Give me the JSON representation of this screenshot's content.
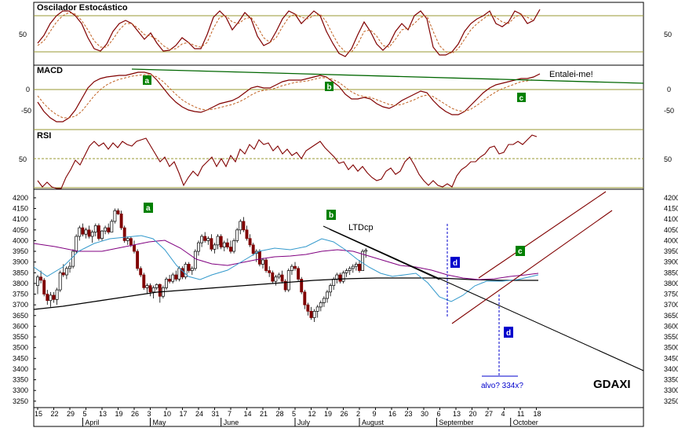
{
  "chart_data": [
    {
      "type": "line",
      "title": "Oscilador Estocástico",
      "y_ticks": [
        50
      ],
      "guide_lines": [
        80,
        20
      ],
      "ylim": [
        0,
        100
      ],
      "series": []
    },
    {
      "type": "line",
      "title": "MACD",
      "y_ticks": [
        0,
        -50
      ],
      "ylim": [
        -85,
        45
      ],
      "annotations": [
        {
          "label": "a",
          "series": "MACD"
        },
        {
          "label": "b",
          "series": "MACD"
        },
        {
          "label": "c",
          "series": "MACD"
        },
        {
          "text": "Entalei-me!"
        }
      ],
      "series": []
    },
    {
      "type": "line",
      "title": "RSI",
      "y_ticks": [
        50
      ],
      "guide_lines": [
        70,
        30
      ],
      "ylim": [
        25,
        75
      ],
      "series": []
    },
    {
      "type": "candlestick",
      "symbol": "GDAXI",
      "ylim": [
        3220,
        4240
      ],
      "y_ticks": [
        4200,
        4150,
        4100,
        4050,
        4000,
        3950,
        3900,
        3850,
        3800,
        3750,
        3700,
        3650,
        3600,
        3550,
        3500,
        3450,
        3400,
        3350,
        3300,
        3250
      ],
      "annotations": [
        {
          "label": "a",
          "color": "#008000"
        },
        {
          "label": "b",
          "color": "#008000"
        },
        {
          "label": "c",
          "color": "#008000"
        },
        {
          "label": "d",
          "color": "#0000cc"
        },
        {
          "label": "d",
          "color": "#0000cc"
        },
        {
          "text": "LTDcp"
        },
        {
          "text": "alvo? 334x?"
        }
      ],
      "candles": [
        {
          "o": 3790,
          "h": 3840,
          "l": 3750,
          "c": 3830
        },
        {
          "o": 3830,
          "h": 3860,
          "l": 3800,
          "c": 3815
        },
        {
          "o": 3815,
          "h": 3825,
          "l": 3740,
          "c": 3750
        },
        {
          "o": 3750,
          "h": 3770,
          "l": 3700,
          "c": 3720
        },
        {
          "o": 3720,
          "h": 3760,
          "l": 3690,
          "c": 3745
        },
        {
          "o": 3745,
          "h": 3760,
          "l": 3710,
          "c": 3725
        },
        {
          "o": 3725,
          "h": 3780,
          "l": 3700,
          "c": 3770
        },
        {
          "o": 3770,
          "h": 3860,
          "l": 3760,
          "c": 3850
        },
        {
          "o": 3850,
          "h": 3890,
          "l": 3830,
          "c": 3840
        },
        {
          "o": 3840,
          "h": 3880,
          "l": 3820,
          "c": 3870
        },
        {
          "o": 3870,
          "h": 3900,
          "l": 3850,
          "c": 3880
        },
        {
          "o": 3880,
          "h": 3960,
          "l": 3870,
          "c": 3950
        },
        {
          "o": 3950,
          "h": 4030,
          "l": 3940,
          "c": 4020
        },
        {
          "o": 4020,
          "h": 4070,
          "l": 4000,
          "c": 4060
        },
        {
          "o": 4060,
          "h": 4080,
          "l": 4020,
          "c": 4030
        },
        {
          "o": 4030,
          "h": 4060,
          "l": 4010,
          "c": 4050
        },
        {
          "o": 4050,
          "h": 4070,
          "l": 4010,
          "c": 4020
        },
        {
          "o": 4020,
          "h": 4050,
          "l": 3990,
          "c": 4040
        },
        {
          "o": 4040,
          "h": 4080,
          "l": 4020,
          "c": 4070
        },
        {
          "o": 4070,
          "h": 4080,
          "l": 4000,
          "c": 4010
        },
        {
          "o": 4010,
          "h": 4050,
          "l": 4000,
          "c": 4045
        },
        {
          "o": 4045,
          "h": 4070,
          "l": 4030,
          "c": 4060
        },
        {
          "o": 4060,
          "h": 4080,
          "l": 4030,
          "c": 4040
        },
        {
          "o": 4040,
          "h": 4100,
          "l": 4040,
          "c": 4090
        },
        {
          "o": 4090,
          "h": 4150,
          "l": 4080,
          "c": 4140
        },
        {
          "o": 4140,
          "h": 4150,
          "l": 4120,
          "c": 4125
        },
        {
          "o": 4125,
          "h": 4140,
          "l": 4050,
          "c": 4060
        },
        {
          "o": 4060,
          "h": 4070,
          "l": 3990,
          "c": 4000
        },
        {
          "o": 4000,
          "h": 4020,
          "l": 3980,
          "c": 4010
        },
        {
          "o": 4010,
          "h": 4020,
          "l": 3970,
          "c": 3980
        },
        {
          "o": 3980,
          "h": 4000,
          "l": 3940,
          "c": 3950
        },
        {
          "o": 3950,
          "h": 3960,
          "l": 3860,
          "c": 3870
        },
        {
          "o": 3870,
          "h": 3880,
          "l": 3830,
          "c": 3840
        },
        {
          "o": 3840,
          "h": 3850,
          "l": 3770,
          "c": 3780
        },
        {
          "o": 3780,
          "h": 3800,
          "l": 3750,
          "c": 3790
        },
        {
          "o": 3790,
          "h": 3800,
          "l": 3740,
          "c": 3760
        },
        {
          "o": 3760,
          "h": 3790,
          "l": 3730,
          "c": 3780
        },
        {
          "o": 3780,
          "h": 3800,
          "l": 3770,
          "c": 3795
        },
        {
          "o": 3795,
          "h": 3800,
          "l": 3710,
          "c": 3740
        },
        {
          "o": 3740,
          "h": 3790,
          "l": 3730,
          "c": 3780
        },
        {
          "o": 3780,
          "h": 3830,
          "l": 3770,
          "c": 3820
        },
        {
          "o": 3820,
          "h": 3840,
          "l": 3800,
          "c": 3810
        },
        {
          "o": 3810,
          "h": 3850,
          "l": 3800,
          "c": 3840
        },
        {
          "o": 3840,
          "h": 3860,
          "l": 3810,
          "c": 3820
        },
        {
          "o": 3820,
          "h": 3880,
          "l": 3810,
          "c": 3870
        },
        {
          "o": 3870,
          "h": 3880,
          "l": 3820,
          "c": 3830
        },
        {
          "o": 3830,
          "h": 3900,
          "l": 3820,
          "c": 3890
        },
        {
          "o": 3890,
          "h": 3900,
          "l": 3850,
          "c": 3860
        },
        {
          "o": 3860,
          "h": 3880,
          "l": 3840,
          "c": 3870
        },
        {
          "o": 3870,
          "h": 3960,
          "l": 3860,
          "c": 3950
        },
        {
          "o": 3950,
          "h": 4000,
          "l": 3930,
          "c": 3990
        },
        {
          "o": 3990,
          "h": 4030,
          "l": 3970,
          "c": 4020
        },
        {
          "o": 4020,
          "h": 4040,
          "l": 3990,
          "c": 4000
        },
        {
          "o": 4000,
          "h": 4020,
          "l": 3980,
          "c": 4010
        },
        {
          "o": 4010,
          "h": 4030,
          "l": 3950,
          "c": 3960
        },
        {
          "o": 3960,
          "h": 3990,
          "l": 3940,
          "c": 3980
        },
        {
          "o": 3980,
          "h": 4030,
          "l": 3960,
          "c": 4020
        },
        {
          "o": 4020,
          "h": 4030,
          "l": 3960,
          "c": 3970
        },
        {
          "o": 3970,
          "h": 4000,
          "l": 3950,
          "c": 3990
        },
        {
          "o": 3990,
          "h": 4010,
          "l": 3960,
          "c": 3970
        },
        {
          "o": 3970,
          "h": 4000,
          "l": 3940,
          "c": 3950
        },
        {
          "o": 3950,
          "h": 4010,
          "l": 3940,
          "c": 4000
        },
        {
          "o": 4000,
          "h": 4060,
          "l": 3990,
          "c": 4050
        },
        {
          "o": 4050,
          "h": 4100,
          "l": 4030,
          "c": 4090
        },
        {
          "o": 4090,
          "h": 4110,
          "l": 4040,
          "c": 4050
        },
        {
          "o": 4050,
          "h": 4070,
          "l": 4000,
          "c": 4010
        },
        {
          "o": 4010,
          "h": 4030,
          "l": 3970,
          "c": 3980
        },
        {
          "o": 3980,
          "h": 3990,
          "l": 3930,
          "c": 3940
        },
        {
          "o": 3940,
          "h": 3960,
          "l": 3900,
          "c": 3950
        },
        {
          "o": 3950,
          "h": 3960,
          "l": 3880,
          "c": 3890
        },
        {
          "o": 3890,
          "h": 3920,
          "l": 3870,
          "c": 3910
        },
        {
          "o": 3910,
          "h": 3920,
          "l": 3850,
          "c": 3860
        },
        {
          "o": 3860,
          "h": 3880,
          "l": 3830,
          "c": 3850
        },
        {
          "o": 3850,
          "h": 3860,
          "l": 3800,
          "c": 3810
        },
        {
          "o": 3810,
          "h": 3840,
          "l": 3790,
          "c": 3830
        },
        {
          "o": 3830,
          "h": 3850,
          "l": 3820,
          "c": 3840
        },
        {
          "o": 3840,
          "h": 3860,
          "l": 3800,
          "c": 3810
        },
        {
          "o": 3810,
          "h": 3820,
          "l": 3760,
          "c": 3770
        },
        {
          "o": 3770,
          "h": 3870,
          "l": 3760,
          "c": 3860
        },
        {
          "o": 3860,
          "h": 3890,
          "l": 3840,
          "c": 3880
        },
        {
          "o": 3880,
          "h": 3900,
          "l": 3860,
          "c": 3870
        },
        {
          "o": 3870,
          "h": 3880,
          "l": 3810,
          "c": 3820
        },
        {
          "o": 3820,
          "h": 3830,
          "l": 3750,
          "c": 3760
        },
        {
          "o": 3760,
          "h": 3770,
          "l": 3680,
          "c": 3700
        },
        {
          "o": 3700,
          "h": 3710,
          "l": 3650,
          "c": 3670
        },
        {
          "o": 3670,
          "h": 3690,
          "l": 3630,
          "c": 3640
        },
        {
          "o": 3640,
          "h": 3680,
          "l": 3620,
          "c": 3670
        },
        {
          "o": 3670,
          "h": 3700,
          "l": 3640,
          "c": 3690
        },
        {
          "o": 3690,
          "h": 3720,
          "l": 3670,
          "c": 3710
        },
        {
          "o": 3710,
          "h": 3740,
          "l": 3690,
          "c": 3730
        },
        {
          "o": 3730,
          "h": 3770,
          "l": 3710,
          "c": 3760
        },
        {
          "o": 3760,
          "h": 3800,
          "l": 3740,
          "c": 3790
        },
        {
          "o": 3790,
          "h": 3830,
          "l": 3770,
          "c": 3820
        },
        {
          "o": 3820,
          "h": 3850,
          "l": 3800,
          "c": 3840
        },
        {
          "o": 3840,
          "h": 3850,
          "l": 3800,
          "c": 3810
        },
        {
          "o": 3810,
          "h": 3860,
          "l": 3800,
          "c": 3850
        },
        {
          "o": 3850,
          "h": 3870,
          "l": 3830,
          "c": 3860
        },
        {
          "o": 3860,
          "h": 3880,
          "l": 3840,
          "c": 3870
        },
        {
          "o": 3870,
          "h": 3890,
          "l": 3850,
          "c": 3880
        },
        {
          "o": 3880,
          "h": 3900,
          "l": 3860,
          "c": 3890
        },
        {
          "o": 3890,
          "h": 3910,
          "l": 3850,
          "c": 3860
        },
        {
          "o": 3860,
          "h": 3960,
          "l": 3860,
          "c": 3950
        },
        {
          "o": 3950,
          "h": 3965,
          "l": 3920,
          "c": 3955
        }
      ],
      "x_ticks": [
        {
          "i": 0,
          "label": "15"
        },
        {
          "i": 5,
          "label": "22"
        },
        {
          "i": 10,
          "label": "29"
        },
        {
          "i": 15,
          "label": "5"
        },
        {
          "i": 20,
          "label": "13"
        },
        {
          "i": 25,
          "label": "19"
        },
        {
          "i": 30,
          "label": "26"
        },
        {
          "i": 35,
          "label": "3"
        },
        {
          "i": 40,
          "label": "10"
        },
        {
          "i": 45,
          "label": "17"
        },
        {
          "i": 50,
          "label": "24"
        },
        {
          "i": 55,
          "label": "31"
        },
        {
          "i": 60,
          "label": "7"
        },
        {
          "i": 65,
          "label": "14"
        },
        {
          "i": 70,
          "label": "21"
        },
        {
          "i": 75,
          "label": "28"
        },
        {
          "i": 80,
          "label": "5"
        },
        {
          "i": 85,
          "label": "12"
        },
        {
          "i": 90,
          "label": "19"
        },
        {
          "i": 95,
          "label": "26"
        },
        {
          "i": 100,
          "label": "2"
        },
        {
          "i": 105,
          "label": "9"
        },
        {
          "i": 110,
          "label": "16"
        },
        {
          "i": 115,
          "label": "23"
        },
        {
          "i": 120,
          "label": "30"
        },
        {
          "i": 125,
          "label": "6"
        },
        {
          "i": 130,
          "label": "13"
        },
        {
          "i": 135,
          "label": "20"
        },
        {
          "i": 140,
          "label": "27"
        },
        {
          "i": 145,
          "label": "4"
        },
        {
          "i": 150,
          "label": "11"
        },
        {
          "i": 155,
          "label": "18"
        }
      ],
      "months": [
        "April",
        "May",
        "June",
        "July",
        "August",
        "September",
        "October"
      ]
    }
  ]
}
